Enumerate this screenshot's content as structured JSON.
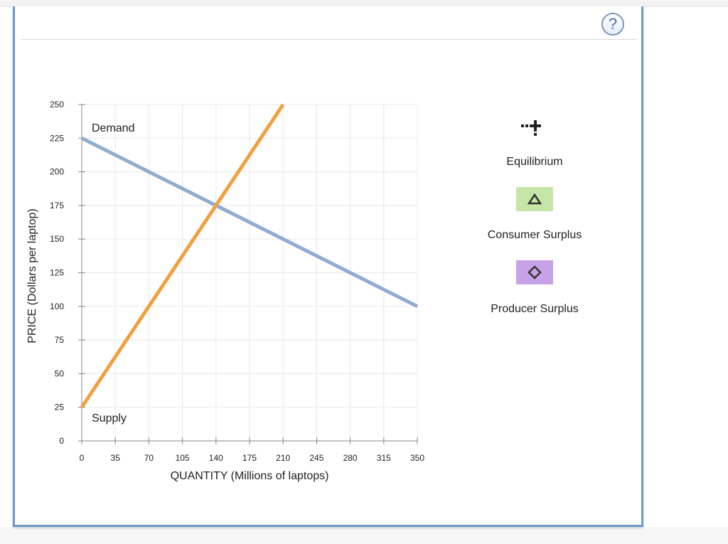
{
  "help": {
    "label": "?"
  },
  "legend": {
    "equilibrium": {
      "label": "Equilibrium",
      "icon": "equilibrium-plus-icon"
    },
    "consumer_surplus": {
      "label": "Consumer Surplus",
      "icon": "triangle-icon",
      "color": "#c5e6a6"
    },
    "producer_surplus": {
      "label": "Producer Surplus",
      "icon": "diamond-icon",
      "color": "#c8a2e6"
    }
  },
  "chart_data": {
    "type": "line",
    "xlabel": "QUANTITY (Millions of laptops)",
    "ylabel": "PRICE (Dollars per laptop)",
    "xlim": [
      0,
      350
    ],
    "ylim": [
      0,
      250
    ],
    "xticks": [
      0,
      35,
      70,
      105,
      140,
      175,
      210,
      245,
      280,
      315,
      350
    ],
    "yticks": [
      0,
      25,
      50,
      75,
      100,
      125,
      150,
      175,
      200,
      225,
      250
    ],
    "grid": true,
    "series": [
      {
        "name": "Demand",
        "color": "#8fadd1",
        "x": [
          0,
          350
        ],
        "y": [
          225,
          100
        ]
      },
      {
        "name": "Supply",
        "color": "#f0a041",
        "x": [
          0,
          210
        ],
        "y": [
          25,
          250
        ]
      }
    ]
  }
}
